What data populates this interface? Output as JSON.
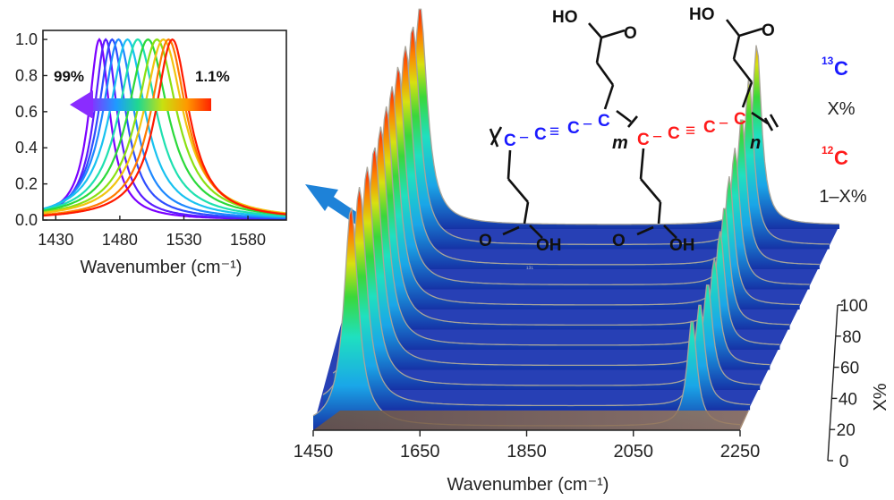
{
  "colors": {
    "spectrum": [
      "#7b00ff",
      "#5a1dff",
      "#2f4dff",
      "#1e88ff",
      "#18c2f0",
      "#1ee0b0",
      "#2bd93a",
      "#8be012",
      "#f1c40f",
      "#ff7a00",
      "#ff1a00"
    ],
    "carbon13": "#1a1aff",
    "carbon12": "#ff1a1a",
    "surface_floor": "#8b6a4f",
    "surface_base": "#1632a6",
    "arrow": "#1e82d8"
  },
  "chart_data": [
    {
      "type": "line",
      "title": "",
      "xlabel": "Wavenumber (cm⁻¹)",
      "ylabel": "",
      "xlim": [
        1420,
        1610
      ],
      "ylim": [
        0,
        1.05
      ],
      "xticks": [
        "1430",
        "1480",
        "1530",
        "1580"
      ],
      "yticks": [
        "0.0",
        "0.2",
        "0.4",
        "0.6",
        "0.8",
        "1.0"
      ],
      "annotations": {
        "left": "99%",
        "right": "1.1%"
      },
      "peak_centers": [
        1464,
        1469,
        1474,
        1479,
        1486,
        1494,
        1502,
        1509,
        1514,
        1518,
        1521
      ],
      "peak_widths": [
        10,
        11,
        13,
        15,
        17,
        18,
        19,
        19,
        19,
        17,
        16
      ],
      "peak_values": [
        1.0,
        1.0,
        1.0,
        1.0,
        1.0,
        1.0,
        1.0,
        1.0,
        1.0,
        1.0,
        1.0
      ]
    },
    {
      "type": "area",
      "title": "",
      "xlabel": "Wavenumber (cm⁻¹)",
      "ylabel": "X%",
      "xlim": [
        1450,
        2250
      ],
      "zlim": [
        0,
        100
      ],
      "xticks": [
        "1450",
        "1650",
        "1850",
        "2050",
        "2250"
      ],
      "zticks": [
        "0",
        "20",
        "40",
        "60",
        "80",
        "100"
      ],
      "series_x_percent": [
        0,
        10,
        20,
        30,
        40,
        50,
        60,
        70,
        80,
        90,
        100
      ],
      "peak1_center": [
        1521,
        1518,
        1514,
        1509,
        1502,
        1494,
        1486,
        1479,
        1474,
        1469,
        1464
      ],
      "peak1_height": [
        1.0,
        1.0,
        1.0,
        1.0,
        1.0,
        1.0,
        1.0,
        1.0,
        1.0,
        1.0,
        1.0
      ],
      "peak2_center": [
        2160,
        2156,
        2152,
        2146,
        2138,
        2128,
        2118,
        2110,
        2104,
        2099,
        2095
      ],
      "peak2_height": [
        0.52,
        0.5,
        0.5,
        0.52,
        0.55,
        0.58,
        0.62,
        0.66,
        0.72,
        0.8,
        0.87
      ]
    }
  ],
  "molecule": {
    "top_groups": [
      "HO",
      "O"
    ],
    "bottom_groups": [
      "O",
      "OH"
    ],
    "atom": "C",
    "bond_left": "−",
    "triple_bond": "≡",
    "sub_m": "m",
    "sub_n": "n"
  },
  "legend13": {
    "sup": "13",
    "symbol": "C",
    "label": "X%"
  },
  "legend12": {
    "sup": "12",
    "symbol": "C",
    "label": "1–X%"
  },
  "watermark": "¹³¹"
}
